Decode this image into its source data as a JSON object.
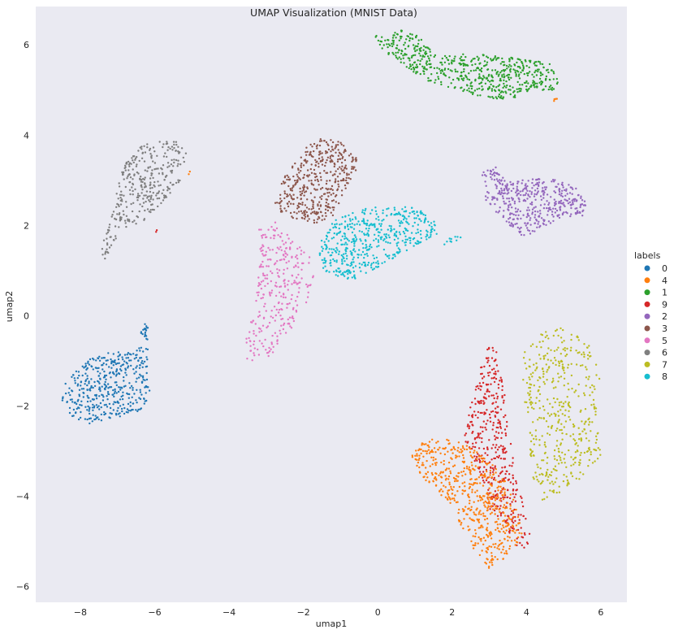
{
  "chart_data": {
    "type": "scatter",
    "title": "UMAP Visualization (MNIST Data)",
    "xlabel": "umap1",
    "ylabel": "umap2",
    "xlim": [
      -9.2,
      6.7
    ],
    "ylim": [
      -6.35,
      6.85
    ],
    "xticks": [
      -8,
      -6,
      -4,
      -2,
      0,
      2,
      4,
      6
    ],
    "yticks": [
      -6,
      -4,
      -2,
      0,
      2,
      4,
      6
    ],
    "grid": false,
    "background": "#eaeaf2",
    "legend": {
      "title": "labels",
      "placement": "right",
      "entries": [
        {
          "label": "0",
          "color": "#1f77b4"
        },
        {
          "label": "4",
          "color": "#ff7f0e"
        },
        {
          "label": "1",
          "color": "#2ca02c"
        },
        {
          "label": "9",
          "color": "#d62728"
        },
        {
          "label": "2",
          "color": "#9467bd"
        },
        {
          "label": "3",
          "color": "#8c564b"
        },
        {
          "label": "5",
          "color": "#e377c2"
        },
        {
          "label": "6",
          "color": "#7f7f7f"
        },
        {
          "label": "7",
          "color": "#bcbd22"
        },
        {
          "label": "8",
          "color": "#17becf"
        }
      ]
    },
    "clusters": [
      {
        "label": "0",
        "color": "#1f77b4",
        "count": 420,
        "polygon": [
          [
            -8.5,
            -1.6
          ],
          [
            -8.2,
            -1.3
          ],
          [
            -7.7,
            -0.9
          ],
          [
            -7.0,
            -0.75
          ],
          [
            -6.6,
            -0.7
          ],
          [
            -6.3,
            -0.6
          ],
          [
            -6.15,
            -0.75
          ],
          [
            -6.2,
            -1.3
          ],
          [
            -6.1,
            -1.8
          ],
          [
            -6.4,
            -2.1
          ],
          [
            -7.0,
            -2.25
          ],
          [
            -7.8,
            -2.4
          ],
          [
            -8.3,
            -2.2
          ],
          [
            -8.5,
            -1.9
          ]
        ]
      },
      {
        "label": "0",
        "color": "#1f77b4",
        "count": 20,
        "polygon": [
          [
            -6.45,
            -0.45
          ],
          [
            -6.3,
            -0.15
          ],
          [
            -6.15,
            -0.25
          ],
          [
            -6.2,
            -0.55
          ]
        ]
      },
      {
        "label": "6",
        "color": "#7f7f7f",
        "count": 330,
        "polygon": [
          [
            -7.5,
            1.0
          ],
          [
            -7.4,
            1.6
          ],
          [
            -7.1,
            2.4
          ],
          [
            -6.9,
            3.2
          ],
          [
            -6.5,
            3.75
          ],
          [
            -6.0,
            3.85
          ],
          [
            -5.4,
            3.9
          ],
          [
            -5.15,
            3.6
          ],
          [
            -5.3,
            3.0
          ],
          [
            -5.8,
            2.5
          ],
          [
            -6.3,
            2.1
          ],
          [
            -6.9,
            1.8
          ],
          [
            -7.3,
            1.3
          ]
        ]
      },
      {
        "label": "3",
        "color": "#8c564b",
        "count": 420,
        "polygon": [
          [
            -2.8,
            2.4
          ],
          [
            -2.6,
            3.0
          ],
          [
            -2.2,
            3.4
          ],
          [
            -1.9,
            3.75
          ],
          [
            -1.5,
            3.95
          ],
          [
            -1.0,
            3.85
          ],
          [
            -0.5,
            3.5
          ],
          [
            -0.6,
            3.2
          ],
          [
            -0.9,
            2.7
          ],
          [
            -1.2,
            2.2
          ],
          [
            -1.8,
            2.0
          ],
          [
            -2.4,
            2.2
          ]
        ]
      },
      {
        "label": "5",
        "color": "#e377c2",
        "count": 300,
        "polygon": [
          [
            -3.6,
            -0.6
          ],
          [
            -3.5,
            -1.15
          ],
          [
            -3.0,
            -1.0
          ],
          [
            -2.5,
            -0.5
          ],
          [
            -2.0,
            0.0
          ],
          [
            -1.7,
            0.7
          ],
          [
            -1.8,
            1.3
          ],
          [
            -2.3,
            1.7
          ],
          [
            -2.8,
            2.1
          ],
          [
            -3.2,
            1.9
          ],
          [
            -3.2,
            1.0
          ],
          [
            -3.3,
            0.2
          ]
        ]
      },
      {
        "label": "8",
        "color": "#17becf",
        "count": 500,
        "polygon": [
          [
            -1.5,
            1.8
          ],
          [
            -1.2,
            2.1
          ],
          [
            -0.5,
            2.35
          ],
          [
            0.3,
            2.45
          ],
          [
            1.0,
            2.4
          ],
          [
            1.5,
            2.15
          ],
          [
            1.6,
            1.8
          ],
          [
            1.1,
            1.6
          ],
          [
            0.3,
            1.2
          ],
          [
            -0.3,
            0.85
          ],
          [
            -0.9,
            0.8
          ],
          [
            -1.5,
            1.0
          ],
          [
            -1.6,
            1.4
          ]
        ]
      },
      {
        "label": "8",
        "color": "#17becf",
        "count": 10,
        "polygon": [
          [
            1.7,
            1.65
          ],
          [
            2.3,
            1.85
          ],
          [
            2.3,
            1.7
          ],
          [
            1.7,
            1.55
          ]
        ]
      },
      {
        "label": "1",
        "color": "#2ca02c",
        "count": 600,
        "polygon": [
          [
            -0.1,
            6.2
          ],
          [
            0.5,
            6.35
          ],
          [
            1.1,
            6.2
          ],
          [
            1.5,
            5.8
          ],
          [
            2.6,
            5.8
          ],
          [
            3.8,
            5.7
          ],
          [
            4.6,
            5.6
          ],
          [
            5.0,
            5.2
          ],
          [
            4.8,
            5.0
          ],
          [
            4.0,
            4.95
          ],
          [
            3.6,
            4.75
          ],
          [
            2.5,
            4.9
          ],
          [
            1.3,
            5.2
          ],
          [
            0.6,
            5.6
          ],
          [
            0.1,
            5.9
          ]
        ]
      },
      {
        "label": "2",
        "color": "#9467bd",
        "count": 420,
        "polygon": [
          [
            2.8,
            3.2
          ],
          [
            3.2,
            3.3
          ],
          [
            3.6,
            3.0
          ],
          [
            4.2,
            3.05
          ],
          [
            4.9,
            3.0
          ],
          [
            5.6,
            2.75
          ],
          [
            5.6,
            2.2
          ],
          [
            5.0,
            2.2
          ],
          [
            4.3,
            1.9
          ],
          [
            3.9,
            1.7
          ],
          [
            3.3,
            2.2
          ],
          [
            2.9,
            2.5
          ]
        ]
      },
      {
        "label": "9",
        "color": "#d62728",
        "count": 420,
        "polygon": [
          [
            2.5,
            -2.0
          ],
          [
            2.7,
            -1.3
          ],
          [
            3.0,
            -0.6
          ],
          [
            3.2,
            -0.8
          ],
          [
            3.4,
            -1.7
          ],
          [
            3.6,
            -2.8
          ],
          [
            3.8,
            -3.8
          ],
          [
            4.1,
            -4.8
          ],
          [
            4.0,
            -5.3
          ],
          [
            3.7,
            -5.1
          ],
          [
            3.4,
            -4.6
          ],
          [
            3.0,
            -4.3
          ],
          [
            2.7,
            -3.4
          ],
          [
            2.3,
            -2.7
          ]
        ]
      },
      {
        "label": "4",
        "color": "#ff7f0e",
        "count": 560,
        "polygon": [
          [
            0.9,
            -3.1
          ],
          [
            1.2,
            -2.8
          ],
          [
            1.6,
            -2.7
          ],
          [
            2.3,
            -2.8
          ],
          [
            3.0,
            -3.2
          ],
          [
            3.6,
            -3.8
          ],
          [
            3.9,
            -4.9
          ],
          [
            3.4,
            -5.4
          ],
          [
            3.0,
            -5.6
          ],
          [
            2.6,
            -5.2
          ],
          [
            2.3,
            -4.8
          ],
          [
            2.0,
            -4.3
          ],
          [
            1.6,
            -3.9
          ],
          [
            1.2,
            -3.6
          ]
        ]
      },
      {
        "label": "7",
        "color": "#bcbd22",
        "count": 450,
        "polygon": [
          [
            3.9,
            -0.8
          ],
          [
            4.5,
            -0.3
          ],
          [
            5.0,
            -0.2
          ],
          [
            5.7,
            -0.5
          ],
          [
            6.0,
            -1.2
          ],
          [
            5.9,
            -2.2
          ],
          [
            6.0,
            -3.1
          ],
          [
            5.5,
            -3.6
          ],
          [
            5.0,
            -3.9
          ],
          [
            4.4,
            -4.1
          ],
          [
            4.1,
            -3.5
          ],
          [
            4.1,
            -2.6
          ],
          [
            3.9,
            -1.8
          ]
        ]
      },
      {
        "label": "4",
        "color": "#ff7f0e",
        "count": 4,
        "polygon": [
          [
            4.7,
            4.75
          ],
          [
            4.8,
            4.85
          ],
          [
            4.85,
            4.75
          ]
        ]
      },
      {
        "label": "4",
        "color": "#ff7f0e",
        "count": 2,
        "polygon": [
          [
            -5.15,
            3.1
          ],
          [
            -5.05,
            3.2
          ],
          [
            -5.1,
            3.1
          ]
        ]
      },
      {
        "label": "9",
        "color": "#d62728",
        "count": 2,
        "polygon": [
          [
            -6.0,
            1.85
          ],
          [
            -5.9,
            1.95
          ],
          [
            -5.95,
            1.85
          ]
        ]
      }
    ]
  }
}
